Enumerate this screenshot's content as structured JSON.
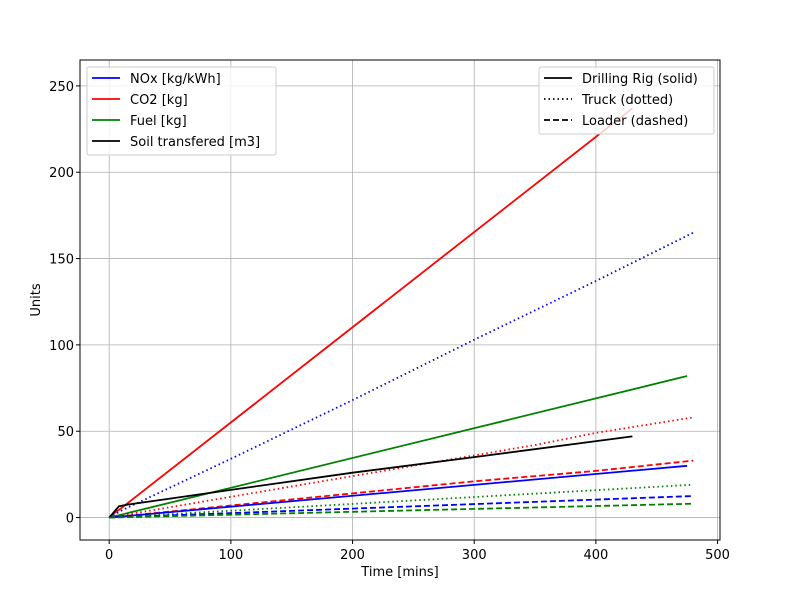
{
  "chart_data": {
    "type": "line",
    "title": "",
    "xlabel": "Time [mins]",
    "ylabel": "Units",
    "xlim": [
      -24,
      502
    ],
    "ylim": [
      -13,
      265
    ],
    "xticks": [
      0,
      100,
      200,
      300,
      400,
      500
    ],
    "yticks": [
      0,
      50,
      100,
      150,
      200,
      250
    ],
    "grid": true,
    "legends": [
      {
        "placement": "top-left",
        "entries": [
          {
            "label": "NOx [kg/kWh]",
            "color": "#0000ff",
            "style": "solid"
          },
          {
            "label": "CO2 [kg]",
            "color": "#ff0000",
            "style": "solid"
          },
          {
            "label": "Fuel [kg]",
            "color": "#008000",
            "style": "solid"
          },
          {
            "label": "Soil transfered [m3]",
            "color": "#000000",
            "style": "solid"
          }
        ]
      },
      {
        "placement": "top-right",
        "entries": [
          {
            "label": "Drilling Rig (solid)",
            "color": "#000000",
            "style": "solid"
          },
          {
            "label": "Truck (dotted)",
            "color": "#000000",
            "style": "dotted"
          },
          {
            "label": "Loader (dashed)",
            "color": "#000000",
            "style": "dashed"
          }
        ]
      }
    ],
    "series": [
      {
        "color": "#ff0000",
        "style": "solid",
        "x": [
          0,
          5,
          10,
          20,
          430
        ],
        "y": [
          0,
          3,
          5.5,
          11,
          237
        ]
      },
      {
        "color": "#0000ff",
        "style": "dotted",
        "x": [
          0,
          10,
          100,
          200,
          300,
          400,
          480
        ],
        "y": [
          0,
          4,
          34,
          68,
          103,
          137,
          165
        ]
      },
      {
        "color": "#008000",
        "style": "solid",
        "x": [
          0,
          475
        ],
        "y": [
          0,
          82
        ]
      },
      {
        "color": "#ff0000",
        "style": "dotted",
        "x": [
          0,
          100,
          200,
          300,
          350,
          400,
          480
        ],
        "y": [
          0,
          12,
          24,
          36,
          42,
          49,
          58
        ]
      },
      {
        "color": "#000000",
        "style": "solid",
        "x": [
          0,
          8,
          15,
          50,
          100,
          200,
          300,
          430
        ],
        "y": [
          0,
          6.5,
          7.5,
          11,
          16,
          26,
          35,
          47
        ]
      },
      {
        "color": "#ff0000",
        "style": "dashed",
        "x": [
          0,
          100,
          200,
          300,
          400,
          480
        ],
        "y": [
          0,
          7,
          14,
          21,
          27,
          33
        ]
      },
      {
        "color": "#0000ff",
        "style": "solid",
        "x": [
          0,
          475
        ],
        "y": [
          0,
          30
        ]
      },
      {
        "color": "#008000",
        "style": "dotted",
        "x": [
          0,
          480
        ],
        "y": [
          0,
          19
        ]
      },
      {
        "color": "#0000ff",
        "style": "dashed",
        "x": [
          0,
          480
        ],
        "y": [
          0,
          12.5
        ]
      },
      {
        "color": "#008000",
        "style": "dashed",
        "x": [
          0,
          480
        ],
        "y": [
          0,
          8
        ]
      }
    ]
  }
}
